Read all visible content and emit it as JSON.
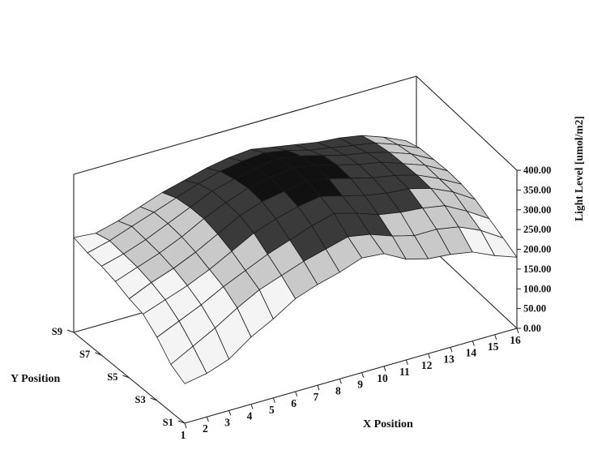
{
  "chart_data": {
    "type": "surface",
    "zlabel": "Light Level [umol/m2]",
    "xlabel": "X Position",
    "ylabel": "Y Position",
    "z_ticks": [
      "400.00",
      "350.00",
      "300.00",
      "250.00",
      "200.00",
      "150.00",
      "100.00",
      "50.00",
      "0.00"
    ],
    "x_ticks": [
      "1",
      "2",
      "3",
      "4",
      "5",
      "6",
      "7",
      "8",
      "9",
      "10",
      "11",
      "12",
      "13",
      "14",
      "15",
      "16"
    ],
    "y_ticks": [
      "S9",
      "S7",
      "S5",
      "S3",
      "S1"
    ],
    "zlim": [
      0,
      400
    ],
    "x_positions": [
      1,
      2,
      3,
      4,
      5,
      6,
      7,
      8,
      9,
      10,
      11,
      12,
      13,
      14,
      15,
      16
    ],
    "y_positions": [
      "S1",
      "S2",
      "S3",
      "S4",
      "S5",
      "S6",
      "S7",
      "S8",
      "S9"
    ],
    "grid": false,
    "colors": {
      "low": "#f4f4f4",
      "mid": "#c9c9c9",
      "high": "#3a3a3a",
      "peak": "#111111",
      "mesh": "#1a1a1a"
    },
    "z_values": [
      [
        100,
        110,
        130,
        170,
        200,
        235,
        255,
        270,
        290,
        285,
        255,
        240,
        235,
        225,
        200,
        180
      ],
      [
        120,
        150,
        180,
        215,
        245,
        265,
        285,
        300,
        315,
        305,
        285,
        270,
        270,
        260,
        235,
        200
      ],
      [
        160,
        185,
        210,
        240,
        265,
        290,
        310,
        330,
        345,
        330,
        310,
        300,
        295,
        285,
        255,
        220
      ],
      [
        190,
        210,
        230,
        255,
        285,
        315,
        335,
        350,
        360,
        345,
        330,
        320,
        315,
        300,
        275,
        240
      ],
      [
        200,
        225,
        245,
        270,
        300,
        330,
        350,
        360,
        370,
        360,
        345,
        330,
        320,
        305,
        280,
        250
      ],
      [
        215,
        235,
        255,
        280,
        310,
        335,
        355,
        365,
        375,
        365,
        350,
        335,
        325,
        305,
        285,
        255
      ],
      [
        225,
        240,
        260,
        285,
        310,
        335,
        350,
        360,
        370,
        360,
        345,
        330,
        320,
        305,
        285,
        255
      ],
      [
        230,
        245,
        265,
        285,
        305,
        325,
        340,
        350,
        355,
        345,
        330,
        320,
        310,
        300,
        280,
        255
      ],
      [
        240,
        235,
        250,
        270,
        290,
        305,
        320,
        330,
        335,
        325,
        315,
        305,
        300,
        290,
        270,
        245
      ]
    ]
  }
}
